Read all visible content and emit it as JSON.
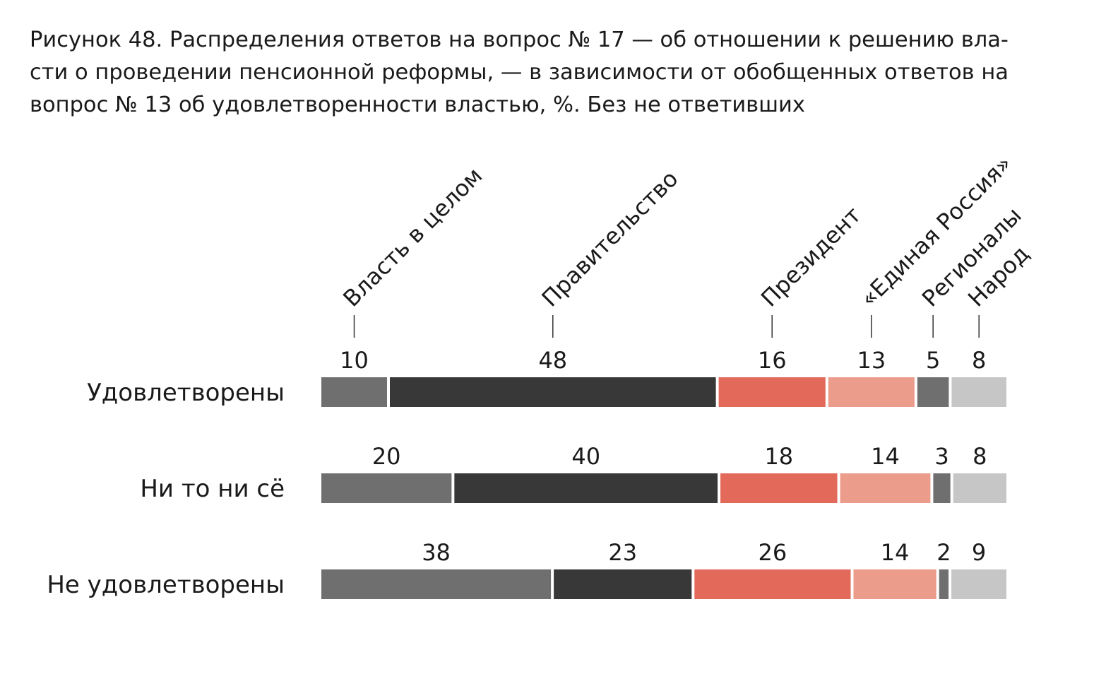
{
  "title": "Рисунок 48. Распределения ответов на вопрос № 17 — об отношении к решению вла-\nсти о проведении пенсионной реформы, — в зависимости от обобщенных ответов на\nвопрос № 13 об удовлетворенности властью, %. Без не ответивших",
  "chart_data": {
    "type": "bar",
    "stacked": true,
    "orientation": "horizontal",
    "categories": [
      "Удовлетворены",
      "Ни то ни сё",
      "Не удовлетворены"
    ],
    "series": [
      {
        "name": "Власть в целом",
        "color": "#6f6f6f",
        "values": [
          10,
          20,
          38
        ]
      },
      {
        "name": "Правительство",
        "color": "#383838",
        "values": [
          48,
          40,
          23
        ]
      },
      {
        "name": "Президент",
        "color": "#e3695b",
        "values": [
          16,
          18,
          26
        ]
      },
      {
        "name": "«Единая Россия»",
        "color": "#ec9c8b",
        "values": [
          13,
          14,
          14
        ]
      },
      {
        "name": "Регионалы",
        "color": "#6f6f6f",
        "values": [
          5,
          3,
          2
        ]
      },
      {
        "name": "Народ",
        "color": "#c6c6c6",
        "values": [
          8,
          8,
          9
        ]
      }
    ],
    "legend": "rotated labels above the first bar",
    "data_labels": true
  }
}
